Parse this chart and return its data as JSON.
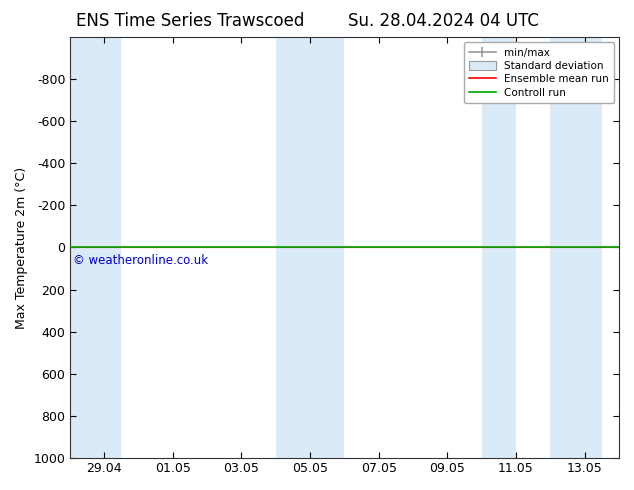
{
  "title_left": "ENS Time Series Trawscoed",
  "title_right": "Su. 28.04.2024 04 UTC",
  "ylabel": "Max Temperature 2m (°C)",
  "ylim_bottom": -1000,
  "ylim_top": 1000,
  "yticks": [
    -800,
    -600,
    -400,
    -200,
    0,
    200,
    400,
    600,
    800,
    1000
  ],
  "xtick_labels": [
    "29.04",
    "01.05",
    "03.05",
    "05.05",
    "07.05",
    "09.05",
    "11.05",
    "13.05"
  ],
  "xtick_positions": [
    1,
    3,
    5,
    7,
    9,
    11,
    13,
    15
  ],
  "xlim": [
    0,
    16
  ],
  "shaded_bands": [
    [
      0.0,
      1.5
    ],
    [
      6.0,
      7.5
    ],
    [
      7.5,
      8.0
    ],
    [
      12.0,
      13.0
    ],
    [
      14.0,
      15.5
    ]
  ],
  "shaded_color": "#daeaf6",
  "green_line_color": "#00aa00",
  "red_line_color": "#ff0000",
  "copyright_text": "© weatheronline.co.uk",
  "copyright_color": "#0000cc",
  "legend_labels": [
    "min/max",
    "Standard deviation",
    "Ensemble mean run",
    "Controll run"
  ],
  "legend_colors_line": [
    "#999999",
    "#bbccdd",
    "#ff0000",
    "#00aa00"
  ],
  "background_color": "#ffffff",
  "font_size": 9,
  "title_font_size": 12
}
